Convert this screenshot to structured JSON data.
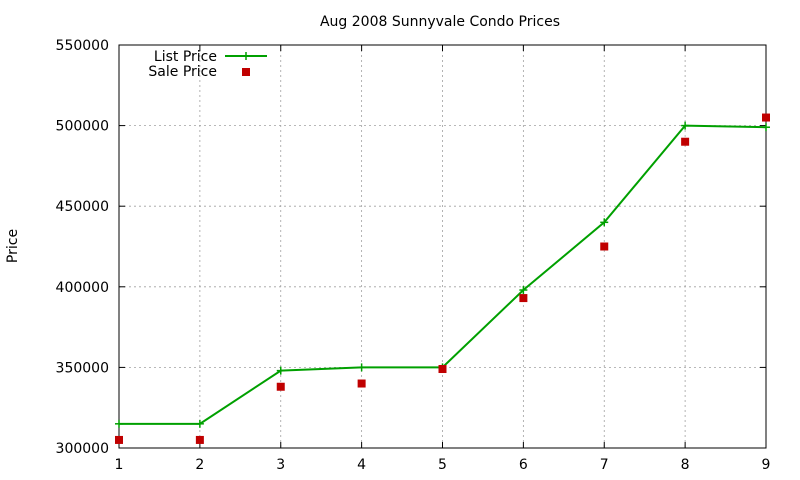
{
  "chart_data": {
    "type": "line",
    "title": "Aug 2008 Sunnyvale Condo Prices",
    "xlabel": "",
    "ylabel": "Price",
    "xlim": [
      1,
      9
    ],
    "ylim": [
      300000,
      550000
    ],
    "xticks": [
      1,
      2,
      3,
      4,
      5,
      6,
      7,
      8,
      9
    ],
    "yticks": [
      300000,
      350000,
      400000,
      450000,
      500000,
      550000
    ],
    "grid": true,
    "legend_position": "top-left",
    "x": [
      1,
      2,
      3,
      4,
      5,
      6,
      7,
      8,
      9
    ],
    "series": [
      {
        "name": "List Price",
        "style": "line with plus markers",
        "color": "#00a000",
        "values": [
          315000,
          315000,
          348000,
          350000,
          350000,
          398000,
          440000,
          500000,
          499000
        ]
      },
      {
        "name": "Sale Price",
        "style": "square points",
        "color": "#c00000",
        "values": [
          305000,
          305000,
          338000,
          340000,
          349000,
          393000,
          425000,
          490000,
          505000
        ]
      }
    ]
  }
}
